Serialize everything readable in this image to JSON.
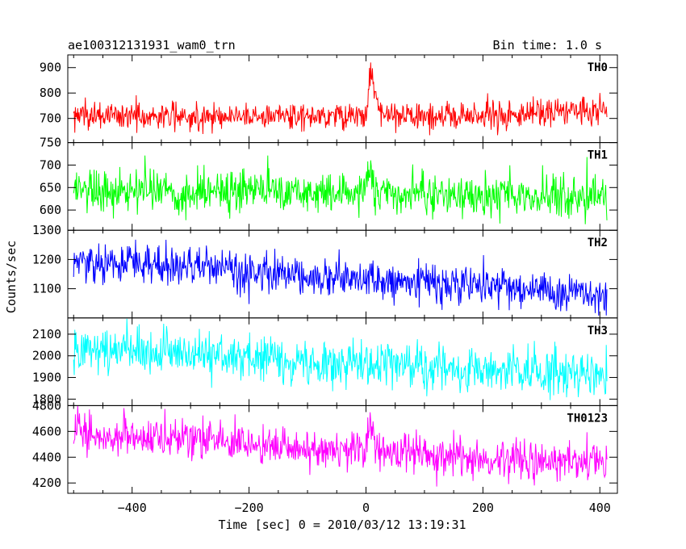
{
  "header": {
    "obs_id": "ae100312131931_wam0_trn",
    "bin_time": "Bin time: 1.0 s"
  },
  "chart_data": {
    "type": "line",
    "title": "ae100312131931_wam0_trn",
    "subtitle": "Bin time: 1.0 s",
    "xlabel": "Time [sec] 0 = 2010/03/12 13:19:31",
    "ylabel": "Counts/sec",
    "xlim": [
      -510,
      430
    ],
    "x_ticks": [
      -400,
      -200,
      0,
      200,
      400
    ],
    "x_range_data": [
      -500,
      412
    ],
    "bin_seconds": 1.0,
    "grid": false,
    "legend": "none",
    "panels": [
      {
        "name": "TH0",
        "color": "#ff0000",
        "ylim": [
          605,
          950
        ],
        "yticks": [
          700,
          800,
          900
        ],
        "ytick_labels": [
          "700",
          "800",
          "900"
        ],
        "trend": [
          [
            -500,
            712
          ],
          [
            -300,
            708
          ],
          [
            -100,
            712
          ],
          [
            0,
            712
          ],
          [
            100,
            705
          ],
          [
            250,
            716
          ],
          [
            412,
            738
          ]
        ],
        "noise_sd": 27,
        "burst": {
          "start_time": 0,
          "peak_time": 8,
          "end_time": 25,
          "peak_value": 920
        }
      },
      {
        "name": "TH1",
        "color": "#00ff00",
        "ylim": [
          555,
          750
        ],
        "yticks": [
          600,
          650,
          700,
          750
        ],
        "ytick_labels": [
          "600",
          "650",
          "700",
          "750"
        ],
        "trend": [
          [
            -500,
            645
          ],
          [
            -300,
            645
          ],
          [
            -100,
            640
          ],
          [
            0,
            638
          ],
          [
            150,
            632
          ],
          [
            412,
            630
          ]
        ],
        "noise_sd": 24,
        "burst": {
          "start_time": 0,
          "peak_time": 5,
          "end_time": 15,
          "peak_value": 715
        }
      },
      {
        "name": "TH2",
        "color": "#0000ff",
        "ylim": [
          1000,
          1300
        ],
        "yticks": [
          1100,
          1200,
          1300
        ],
        "ytick_labels": [
          "1100",
          "1200",
          "1300"
        ],
        "trend": [
          [
            -500,
            1190
          ],
          [
            -300,
            1175
          ],
          [
            -100,
            1145
          ],
          [
            100,
            1120
          ],
          [
            300,
            1095
          ],
          [
            412,
            1080
          ]
        ],
        "noise_sd": 33,
        "burst": null
      },
      {
        "name": "TH3",
        "color": "#00ffff",
        "ylim": [
          1770,
          2175
        ],
        "yticks": [
          1800,
          1900,
          2000,
          2100
        ],
        "ytick_labels": [
          "1800",
          "1900",
          "2000",
          "2100"
        ],
        "trend": [
          [
            -500,
            2050
          ],
          [
            -300,
            2010
          ],
          [
            -100,
            1975
          ],
          [
            100,
            1950
          ],
          [
            300,
            1925
          ],
          [
            412,
            1915
          ]
        ],
        "noise_sd": 52,
        "burst": null
      },
      {
        "name": "TH0123",
        "color": "#ff00ff",
        "ylim": [
          4120,
          4800
        ],
        "yticks": [
          4200,
          4400,
          4600,
          4800
        ],
        "ytick_labels": [
          "4200",
          "4400",
          "4600",
          "4800"
        ],
        "trend": [
          [
            -500,
            4590
          ],
          [
            -300,
            4530
          ],
          [
            -100,
            4470
          ],
          [
            0,
            4470
          ],
          [
            100,
            4420
          ],
          [
            300,
            4380
          ],
          [
            412,
            4370
          ]
        ],
        "noise_sd": 78,
        "burst": {
          "start_time": 0,
          "peak_time": 5,
          "end_time": 20,
          "peak_value": 4740
        }
      }
    ]
  }
}
